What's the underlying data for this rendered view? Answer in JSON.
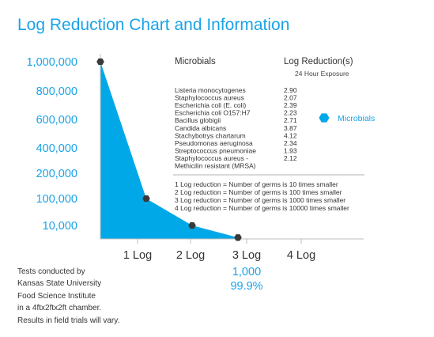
{
  "title": "Log Reduction Chart and Information",
  "colors": {
    "accent": "#1aa3e8",
    "fill": "#00a8e8",
    "marker": "#3a3a3a",
    "text": "#333333"
  },
  "chart_data": {
    "type": "area",
    "y_tick_labels": [
      "1,000,000",
      "800,000",
      "600,000",
      "400,000",
      "200,000",
      "100,000",
      "10,000"
    ],
    "x_tick_labels": [
      "1 Log",
      "2 Log",
      "3 Log",
      "4 Log"
    ],
    "series": [
      {
        "values": [
          1000000,
          100000,
          10000,
          1000
        ]
      }
    ],
    "below_axis_annotations": [
      "1,000",
      "99.9%"
    ],
    "marker_shape": "hexagon",
    "grid": false
  },
  "table": {
    "col1_header": "Microbials",
    "col2_header": "Log Reduction(s)",
    "col2_subheader": "24 Hour Exposure",
    "rows": [
      {
        "name": "Listeria monocytogenes",
        "value": "2.90"
      },
      {
        "name": "Staphylococcus aureus",
        "value": "2.07"
      },
      {
        "name": "Escherichia coli (E. coli)",
        "value": "2.39"
      },
      {
        "name": "Escherichia coli O157:H7",
        "value": "2.23"
      },
      {
        "name": "Bacillus globigii",
        "value": "2.71"
      },
      {
        "name": "Candida albicans",
        "value": "3.87"
      },
      {
        "name": "Stachybotrys chartarum",
        "value": "4.12"
      },
      {
        "name": "Pseudomonas aeruginosa",
        "value": "2.34"
      },
      {
        "name": "Streptococcus pneumoniae",
        "value": "1.93"
      },
      {
        "name": "Staphylococcus aureus -",
        "value": "2.12"
      },
      {
        "name": "Methicilin resistant (MRSA)",
        "value": ""
      }
    ],
    "legend_label": "Microbials",
    "definitions": [
      "1 Log reduction = Number of germs is 10 times smaller",
      "2 Log reduction = Number of germs is 100 times smaller",
      "3 Log reduction = Number of germs is 1000 times smaller",
      "4 Log reduction = Number of germs is 10000 times smaller"
    ]
  },
  "footnote": [
    "Tests conducted by",
    "Kansas State University",
    "Food Science Institute",
    "in a 4ftx2ftx2ft chamber.",
    "Results in field trials will vary."
  ]
}
